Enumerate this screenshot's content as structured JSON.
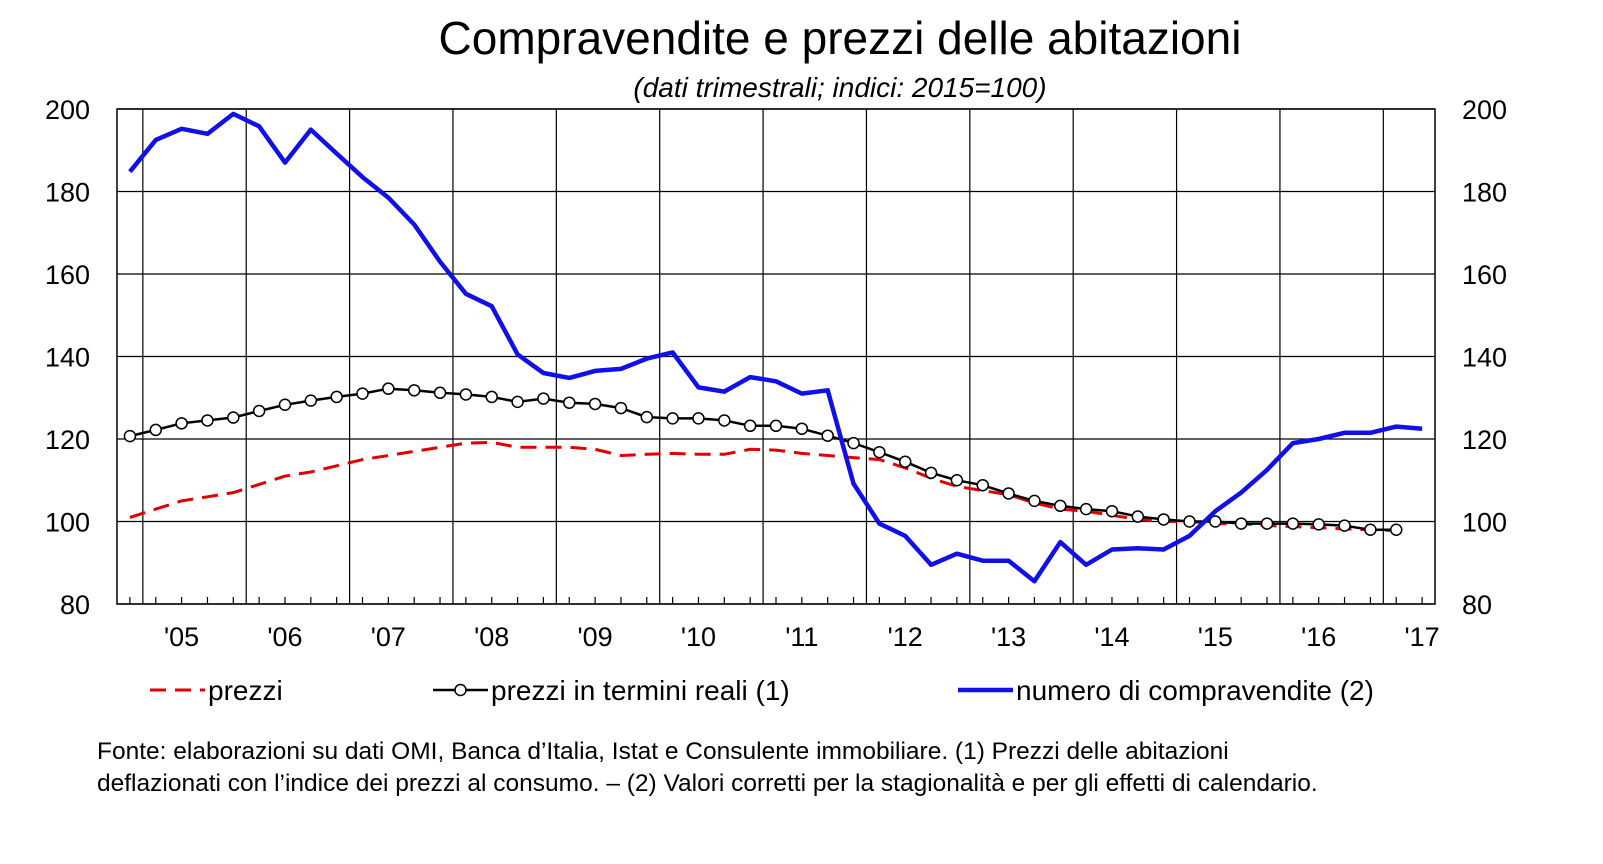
{
  "chart_data": {
    "type": "line",
    "title": "Compravendite e prezzi delle abitazioni",
    "subtitle": "(dati trimestrali; indici: 2015=100)",
    "ylim": [
      80,
      200
    ],
    "yticks": [
      80,
      100,
      120,
      140,
      160,
      180,
      200
    ],
    "xlim": [
      2004.625,
      2017.375
    ],
    "categories": [
      "'05",
      "'06",
      "'07",
      "'08",
      "'09",
      "'10",
      "'11",
      "'12",
      "'13",
      "'14",
      "'15",
      "'16",
      "'17"
    ],
    "grid": true,
    "legend_position": "bottom",
    "series": [
      {
        "name": "prezzi",
        "color": "#e00000",
        "style": "dashed",
        "x": [
          2004.75,
          2005.0,
          2005.25,
          2005.5,
          2005.75,
          2006.0,
          2006.25,
          2006.5,
          2006.75,
          2007.0,
          2007.25,
          2007.5,
          2007.75,
          2008.0,
          2008.25,
          2008.5,
          2008.75,
          2009.0,
          2009.25,
          2009.5,
          2009.75,
          2010.0,
          2010.25,
          2010.5,
          2010.75,
          2011.0,
          2011.25,
          2011.5,
          2011.75,
          2012.0,
          2012.25,
          2012.5,
          2012.75,
          2013.0,
          2013.25,
          2013.5,
          2013.75,
          2014.0,
          2014.25,
          2014.5,
          2014.75,
          2015.0,
          2015.25,
          2015.5,
          2015.75,
          2016.0,
          2016.25,
          2016.5,
          2016.75,
          2017.0
        ],
        "values": [
          101,
          103,
          105,
          106,
          107,
          109,
          111,
          112,
          113.5,
          115,
          116,
          117,
          118,
          119,
          119.2,
          118,
          118,
          118,
          117.5,
          116,
          116.3,
          116.5,
          116.3,
          116.3,
          117.5,
          117.3,
          116.5,
          116,
          115.5,
          115,
          113,
          110.5,
          108.5,
          107.5,
          106.5,
          104.5,
          103,
          102.5,
          101.5,
          100.5,
          100,
          100,
          99.5,
          99.5,
          99,
          98.8,
          98.5,
          98.2,
          98,
          97.8
        ]
      },
      {
        "name": "prezzi in termini reali (1)",
        "color": "#000000",
        "style": "line-with-circles",
        "x": [
          2004.75,
          2005.0,
          2005.25,
          2005.5,
          2005.75,
          2006.0,
          2006.25,
          2006.5,
          2006.75,
          2007.0,
          2007.25,
          2007.5,
          2007.75,
          2008.0,
          2008.25,
          2008.5,
          2008.75,
          2009.0,
          2009.25,
          2009.5,
          2009.75,
          2010.0,
          2010.25,
          2010.5,
          2010.75,
          2011.0,
          2011.25,
          2011.5,
          2011.75,
          2012.0,
          2012.25,
          2012.5,
          2012.75,
          2013.0,
          2013.25,
          2013.5,
          2013.75,
          2014.0,
          2014.25,
          2014.5,
          2014.75,
          2015.0,
          2015.25,
          2015.5,
          2015.75,
          2016.0,
          2016.25,
          2016.5,
          2016.75,
          2017.0
        ],
        "values": [
          120.7,
          122.2,
          123.8,
          124.5,
          125.2,
          126.8,
          128.3,
          129.3,
          130.2,
          131.0,
          132.2,
          131.8,
          131.2,
          130.8,
          130.2,
          129.0,
          129.8,
          128.8,
          128.5,
          127.5,
          125.3,
          125.0,
          125.0,
          124.5,
          123.2,
          123.2,
          122.5,
          120.8,
          119.0,
          116.8,
          114.5,
          111.8,
          110.0,
          108.8,
          106.8,
          105.0,
          103.8,
          103.0,
          102.5,
          101.2,
          100.5,
          100.0,
          100.0,
          99.5,
          99.5,
          99.5,
          99.3,
          99.0,
          98.0,
          98.0
        ]
      },
      {
        "name": "numero di compravendite (2)",
        "color": "#1010e8",
        "style": "solid",
        "x": [
          2004.75,
          2005.0,
          2005.25,
          2005.5,
          2005.75,
          2006.0,
          2006.25,
          2006.5,
          2006.75,
          2007.0,
          2007.25,
          2007.5,
          2007.75,
          2008.0,
          2008.25,
          2008.5,
          2008.75,
          2009.0,
          2009.25,
          2009.5,
          2009.75,
          2010.0,
          2010.25,
          2010.5,
          2010.75,
          2011.0,
          2011.25,
          2011.5,
          2011.75,
          2012.0,
          2012.25,
          2012.5,
          2012.75,
          2013.0,
          2013.25,
          2013.5,
          2013.75,
          2014.0,
          2014.25,
          2014.5,
          2014.75,
          2015.0,
          2015.25,
          2015.5,
          2015.75,
          2016.0,
          2016.25,
          2016.5,
          2016.75,
          2017.0,
          2017.25
        ],
        "values": [
          184.8,
          192.5,
          195.2,
          194.0,
          198.8,
          195.8,
          187.0,
          195.0,
          189.2,
          183.5,
          178.5,
          172.0,
          163.0,
          155.2,
          152.2,
          140.5,
          136.0,
          134.8,
          136.5,
          137.0,
          139.5,
          141.0,
          132.5,
          131.5,
          135.0,
          134.0,
          131.0,
          131.8,
          109.2,
          99.5,
          96.5,
          89.5,
          92.2,
          90.5,
          90.5,
          85.5,
          95.0,
          89.5,
          93.2,
          93.5,
          93.2,
          96.5,
          102.5,
          107.0,
          112.5,
          119.0,
          120.0,
          121.5,
          121.5,
          123.0,
          122.5
        ]
      }
    ]
  },
  "footnote": {
    "line1": "Fonte: elaborazioni su dati OMI, Banca d’Italia, Istat e Consulente immobiliare. (1) Prezzi delle abitazioni",
    "line2": "deflazionati con l’indice dei prezzi al consumo. – (2) Valori corretti per la stagionalità e per gli effetti di calendario."
  }
}
